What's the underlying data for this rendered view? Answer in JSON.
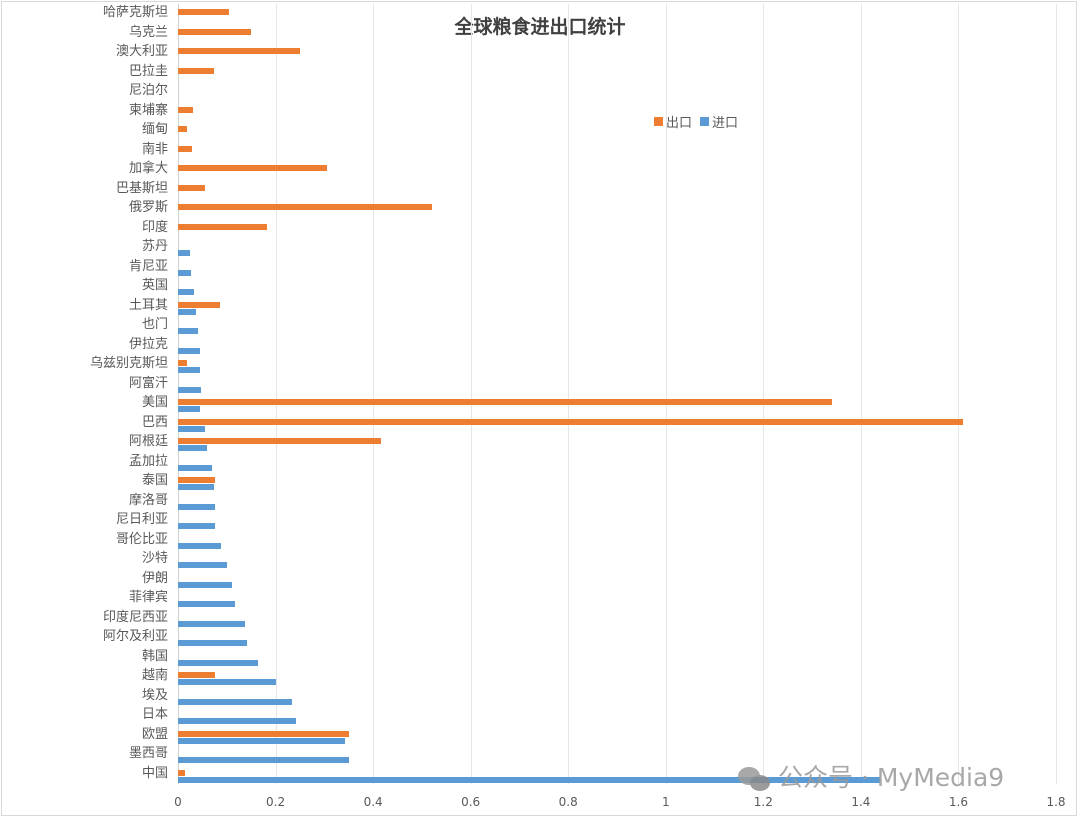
{
  "chart_data": {
    "type": "bar",
    "orientation": "horizontal",
    "title": "全球粮食进出口统计",
    "xlabel": "",
    "ylabel": "",
    "xlim": [
      0,
      1.8
    ],
    "xticks": [
      "0",
      "0.2",
      "0.4",
      "0.6",
      "0.8",
      "1",
      "1.2",
      "1.4",
      "1.6",
      "1.8"
    ],
    "grid": true,
    "legend_position": "top-right-inside",
    "categories": [
      "哈萨克斯坦",
      "乌克兰",
      "澳大利亚",
      "巴拉圭",
      "尼泊尔",
      "柬埔寨",
      "缅甸",
      "南非",
      "加拿大",
      "巴基斯坦",
      "俄罗斯",
      "印度",
      "苏丹",
      "肯尼亚",
      "英国",
      "土耳其",
      "也门",
      "伊拉克",
      "乌兹别克斯坦",
      "阿富汗",
      "美国",
      "巴西",
      "阿根廷",
      "孟加拉",
      "泰国",
      "摩洛哥",
      "尼日利亚",
      "哥伦比亚",
      "沙特",
      "伊朗",
      "菲律宾",
      "印度尼西亚",
      "阿尔及利亚",
      "韩国",
      "越南",
      "埃及",
      "日本",
      "欧盟",
      "墨西哥",
      "中国"
    ],
    "series": [
      {
        "name": "出口",
        "color": "#ED7D31",
        "values": [
          0.105,
          0.15,
          0.25,
          0.074,
          0,
          0.03,
          0.019,
          0.029,
          0.305,
          0.056,
          0.52,
          0.182,
          0,
          0,
          0,
          0.086,
          0,
          0,
          0.018,
          0,
          1.34,
          1.61,
          0.416,
          0,
          0.076,
          0,
          0,
          0,
          0,
          0,
          0,
          0,
          0,
          0,
          0.076,
          0,
          0,
          0.35,
          0,
          0.014
        ]
      },
      {
        "name": "进口",
        "color": "#5B9BD5",
        "values": [
          0,
          0,
          0,
          0,
          0,
          0,
          0,
          0,
          0,
          0,
          0,
          0,
          0.025,
          0.027,
          0.033,
          0.037,
          0.041,
          0.045,
          0.045,
          0.047,
          0.046,
          0.056,
          0.06,
          0.07,
          0.074,
          0.076,
          0.076,
          0.088,
          0.1,
          0.111,
          0.117,
          0.137,
          0.141,
          0.164,
          0.201,
          0.234,
          0.242,
          0.342,
          0.35,
          1.44
        ]
      }
    ]
  },
  "legend": {
    "export_label": "出口",
    "import_label": "进口"
  },
  "watermark": {
    "text": "公众号 · MyMedia9"
  }
}
